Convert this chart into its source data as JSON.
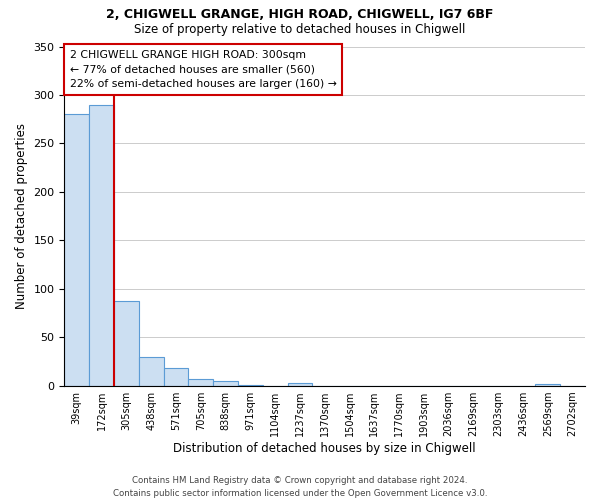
{
  "title1": "2, CHIGWELL GRANGE, HIGH ROAD, CHIGWELL, IG7 6BF",
  "title2": "Size of property relative to detached houses in Chigwell",
  "xlabel": "Distribution of detached houses by size in Chigwell",
  "ylabel": "Number of detached properties",
  "bar_labels": [
    "39sqm",
    "172sqm",
    "305sqm",
    "438sqm",
    "571sqm",
    "705sqm",
    "838sqm",
    "971sqm",
    "1104sqm",
    "1237sqm",
    "1370sqm",
    "1504sqm",
    "1637sqm",
    "1770sqm",
    "1903sqm",
    "2036sqm",
    "2169sqm",
    "2303sqm",
    "2436sqm",
    "2569sqm",
    "2702sqm"
  ],
  "bar_values": [
    280,
    290,
    88,
    30,
    19,
    7,
    5,
    1,
    0,
    3,
    0,
    0,
    0,
    0,
    0,
    0,
    0,
    0,
    0,
    2,
    0
  ],
  "bar_color": "#ccdff2",
  "bar_edge_color": "#5b9bd5",
  "vline_color": "#cc0000",
  "vline_pos": 2,
  "ylim": [
    0,
    350
  ],
  "yticks": [
    0,
    50,
    100,
    150,
    200,
    250,
    300,
    350
  ],
  "annotation_title": "2 CHIGWELL GRANGE HIGH ROAD: 300sqm",
  "annotation_line1": "← 77% of detached houses are smaller (560)",
  "annotation_line2": "22% of semi-detached houses are larger (160) →",
  "footer1": "Contains HM Land Registry data © Crown copyright and database right 2024.",
  "footer2": "Contains public sector information licensed under the Open Government Licence v3.0.",
  "bg_color": "#ffffff",
  "grid_color": "#cccccc"
}
